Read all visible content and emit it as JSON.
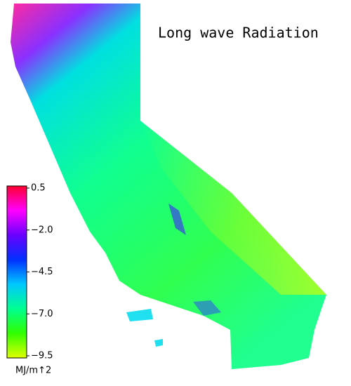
{
  "title": "Long wave Radiation",
  "colorbar": {
    "lim": [
      -9.5,
      0.5
    ],
    "ticks": [
      0.5,
      {
        "value": -2,
        "label": "−2.0"
      },
      {
        "value": -4.5,
        "label": "−4.5"
      },
      {
        "value": -7,
        "label": "−7.0"
      },
      {
        "value": -9.5,
        "label": "−9.5"
      }
    ],
    "unit": "MJ/m↑2",
    "colors": [
      "#ff0030",
      "#ff00ff",
      "#6a00ff",
      "#0030ff",
      "#00c8ff",
      "#00ff90",
      "#30ff00",
      "#e0ff00"
    ]
  }
}
